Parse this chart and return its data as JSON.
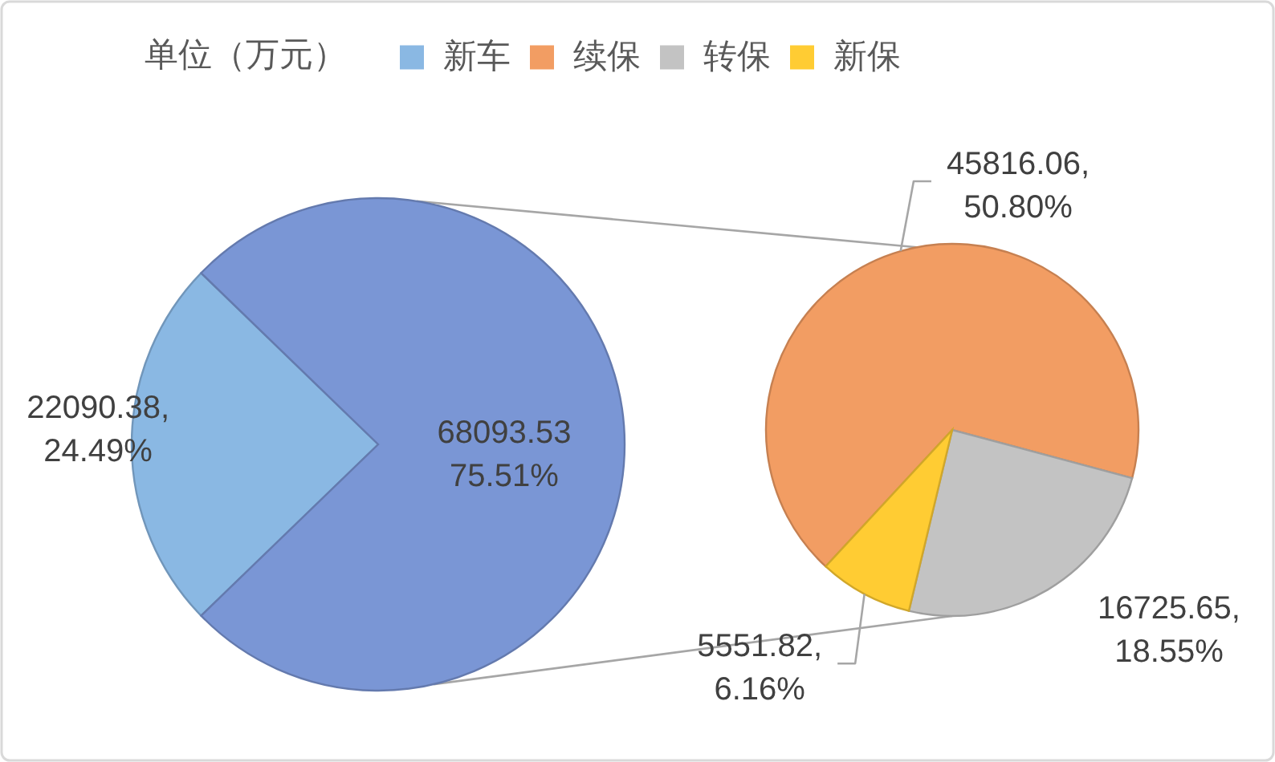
{
  "chart_data": [
    {
      "type": "pie",
      "legend": "top",
      "legend_title": "单位（万元）",
      "categories": [
        "新车",
        null
      ],
      "values": [
        22090.38,
        68093.53
      ],
      "colors": [
        "#8ab8e3",
        "#7a96d5"
      ],
      "value_labels": [
        "22090.38,\n24.49%",
        "68093.53\n75.51%"
      ]
    },
    {
      "type": "pie",
      "legend": "top",
      "categories": [
        "续保",
        "转保",
        "新保"
      ],
      "values": [
        45816.06,
        16725.65,
        5551.82
      ],
      "colors": [
        "#f29d63",
        "#c3c3c3",
        "#ffcc33"
      ],
      "value_labels": [
        "45816.06,\n50.80%",
        "16725.65,\n18.55%",
        "5551.82,\n6.16%"
      ]
    }
  ]
}
